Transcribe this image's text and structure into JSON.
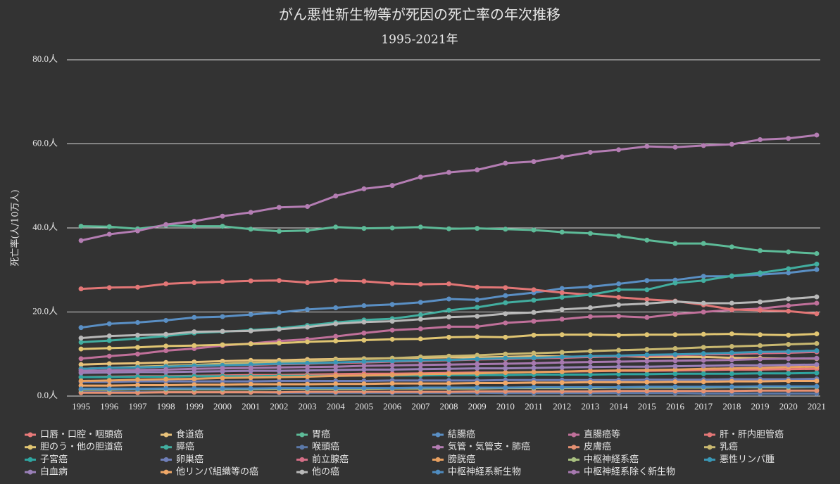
{
  "chart_data": {
    "type": "line",
    "title": "がん悪性新生物等が死因の死亡率の年次推移",
    "subtitle": "1995-2021年",
    "y_label": "死亡率(人/10万人)",
    "categories": [
      "1995",
      "1996",
      "1997",
      "1998",
      "1999",
      "2000",
      "2001",
      "2002",
      "2003",
      "2004",
      "2005",
      "2006",
      "2007",
      "2008",
      "2009",
      "2010",
      "2011",
      "2012",
      "2013",
      "2014",
      "2015",
      "2016",
      "2017",
      "2018",
      "2019",
      "2020",
      "2021"
    ],
    "ylim": [
      0,
      80
    ],
    "yticks": [
      {
        "value": 0,
        "label": "0.0人"
      },
      {
        "value": 20,
        "label": "20.0人"
      },
      {
        "value": 40,
        "label": "40.0人"
      },
      {
        "value": 60,
        "label": "60.0人"
      },
      {
        "value": 80,
        "label": "80.0人"
      }
    ],
    "grid": true,
    "series": [
      {
        "name": "口唇・口腔・咽頭癌",
        "color": "#e87a7a",
        "values": [
          4.5,
          4.6,
          4.7,
          4.7,
          4.8,
          4.9,
          5,
          5,
          5.1,
          5.2,
          5.3,
          5.3,
          5.4,
          5.5,
          5.6,
          5.6,
          5.7,
          5.8,
          5.9,
          6,
          6,
          6.1,
          6.2,
          6.3,
          6.3,
          6.4,
          6.5
        ]
      },
      {
        "name": "食道癌",
        "color": "#e8c27a",
        "values": [
          7.5,
          7.7,
          7.8,
          8,
          8.1,
          8.3,
          8.5,
          8.5,
          8.7,
          8.8,
          8.9,
          9,
          9.1,
          9.2,
          9.2,
          9.3,
          9.5,
          9.4,
          9.3,
          9.5,
          9.3,
          9.3,
          9.3,
          9.1,
          9,
          8.9,
          8.9
        ]
      },
      {
        "name": "胃癌",
        "color": "#5dbb98",
        "values": [
          40.4,
          40.3,
          39.8,
          40.6,
          40.4,
          40.4,
          39.7,
          39.2,
          39.4,
          40.2,
          39.9,
          40,
          40.2,
          39.8,
          39.9,
          39.7,
          39.5,
          39,
          38.7,
          38.1,
          37.1,
          36.3,
          36.3,
          35.5,
          34.6,
          34.3,
          33.9
        ]
      },
      {
        "name": "結腸癌",
        "color": "#5a8fc4",
        "values": [
          16.3,
          17.2,
          17.5,
          18,
          18.7,
          18.9,
          19.4,
          19.9,
          20.6,
          21,
          21.5,
          21.8,
          22.3,
          23.1,
          22.9,
          23.9,
          24.6,
          25.6,
          26,
          26.7,
          27.5,
          27.6,
          28.5,
          28.5,
          28.9,
          29.3,
          30.1
        ]
      },
      {
        "name": "直腸癌等",
        "color": "#c0709a",
        "values": [
          8.9,
          9.5,
          10,
          10.8,
          11.3,
          12,
          12.5,
          13.1,
          13.5,
          14.2,
          15,
          15.7,
          16,
          16.5,
          16.5,
          17.4,
          17.8,
          18.3,
          18.9,
          19,
          18.7,
          19.5,
          20,
          20.5,
          20.8,
          21.5,
          22.1
        ]
      },
      {
        "name": "肝・肝内胆管癌",
        "color": "#e27676",
        "values": [
          25.5,
          25.8,
          25.9,
          26.7,
          27,
          27.2,
          27.4,
          27.5,
          27,
          27.5,
          27.3,
          26.8,
          26.6,
          26.7,
          25.9,
          25.8,
          25.3,
          24.6,
          24.1,
          23.5,
          23,
          22.6,
          21.7,
          20.6,
          20.4,
          20.2,
          19.6
        ]
      },
      {
        "name": "胆のう・他の胆道癌",
        "color": "#e0c572",
        "values": [
          11.2,
          11.4,
          11.6,
          11.9,
          12,
          12.2,
          12.4,
          12.6,
          12.9,
          13.1,
          13.3,
          13.5,
          13.6,
          14,
          14.1,
          14,
          14.5,
          14.6,
          14.6,
          14.5,
          14.6,
          14.6,
          14.7,
          14.8,
          14.6,
          14.5,
          14.8
        ]
      },
      {
        "name": "膵癌",
        "color": "#42aea0",
        "values": [
          12.8,
          13.2,
          13.7,
          14.3,
          15,
          15.3,
          15.7,
          16.1,
          16.8,
          17.5,
          18.1,
          18.4,
          19.3,
          20.4,
          21.1,
          22.2,
          22.8,
          23.5,
          24.1,
          25.3,
          25.3,
          26.9,
          27.5,
          28.6,
          29.3,
          30.3,
          31.4
        ]
      },
      {
        "name": "喉頭癌",
        "color": "#5b78a8",
        "values": [
          0.9,
          0.9,
          0.9,
          0.9,
          0.9,
          0.9,
          0.9,
          0.8,
          0.8,
          0.8,
          0.8,
          0.8,
          0.8,
          0.8,
          0.8,
          0.7,
          0.7,
          0.7,
          0.7,
          0.7,
          0.7,
          0.7,
          0.6,
          0.6,
          0.6,
          0.6,
          0.6
        ]
      },
      {
        "name": "気管・気管支・肺癌",
        "color": "#b47db3",
        "values": [
          37,
          38.5,
          39.3,
          40.8,
          41.6,
          42.8,
          43.7,
          44.9,
          45.1,
          47.6,
          49.3,
          50.1,
          52.1,
          53.2,
          53.8,
          55.4,
          55.8,
          56.9,
          58,
          58.6,
          59.4,
          59.2,
          59.6,
          59.9,
          61,
          61.3,
          62.1
        ]
      },
      {
        "name": "皮膚癌",
        "color": "#e59072",
        "values": [
          0.8,
          0.8,
          0.8,
          0.9,
          0.9,
          0.9,
          0.9,
          0.9,
          1,
          1,
          1,
          1,
          1,
          1,
          1.1,
          1.1,
          1.1,
          1.1,
          1.1,
          1.2,
          1.2,
          1.2,
          1.2,
          1.2,
          1.3,
          1.3,
          1.3
        ]
      },
      {
        "name": "乳癌",
        "color": "#c9b870",
        "values": [
          6.5,
          6.7,
          7,
          7.2,
          7.4,
          7.7,
          7.9,
          8.1,
          8.3,
          8.6,
          8.8,
          9,
          9.3,
          9.5,
          9.7,
          10,
          10.2,
          10.4,
          10.7,
          10.9,
          11.1,
          11.3,
          11.6,
          11.8,
          12,
          12.3,
          12.5
        ]
      },
      {
        "name": "子宮癌",
        "color": "#2fa5a0",
        "values": [
          4.5,
          4.5,
          4.6,
          4.6,
          4.7,
          4.7,
          4.7,
          4.8,
          4.8,
          4.8,
          4.9,
          4.9,
          4.9,
          5,
          5,
          5,
          5.1,
          5.1,
          5.1,
          5.2,
          5.2,
          5.3,
          5.3,
          5.3,
          5.4,
          5.4,
          5.5
        ]
      },
      {
        "name": "卵巣癌",
        "color": "#6f7fb8",
        "values": [
          3.4,
          3.4,
          3.5,
          3.5,
          3.5,
          3.5,
          3.5,
          3.6,
          3.6,
          3.6,
          3.6,
          3.7,
          3.7,
          3.7,
          3.7,
          3.8,
          3.8,
          3.8,
          3.8,
          3.8,
          3.9,
          3.9,
          3.9,
          4,
          4,
          4,
          4.1
        ]
      },
      {
        "name": "前立腺癌",
        "color": "#d46e86",
        "values": [
          6.5,
          6.7,
          6.8,
          7,
          7.1,
          7.3,
          7.4,
          7.6,
          7.7,
          7.9,
          8,
          8.2,
          8.3,
          8.5,
          8.7,
          8.8,
          9,
          9.1,
          9.3,
          9.4,
          9.6,
          9.7,
          9.9,
          10,
          10.2,
          10.3,
          10.5
        ]
      },
      {
        "name": "膀胱癌",
        "color": "#e8a060",
        "values": [
          3.6,
          3.7,
          3.9,
          4,
          4.1,
          4.3,
          4.4,
          4.5,
          4.6,
          4.8,
          4.9,
          5,
          5.2,
          5.3,
          5.4,
          5.6,
          5.7,
          5.8,
          6,
          6.1,
          6.2,
          6.3,
          6.5,
          6.6,
          6.7,
          6.9,
          7
        ]
      },
      {
        "name": "中枢神経系癌",
        "color": "#a9c080",
        "values": [
          1.5,
          1.5,
          1.6,
          1.6,
          1.6,
          1.6,
          1.6,
          1.7,
          1.7,
          1.7,
          1.7,
          1.8,
          1.8,
          1.8,
          1.8,
          1.9,
          1.9,
          1.9,
          1.9,
          2,
          2,
          2,
          2,
          2.1,
          2.1,
          2.1,
          2.2
        ]
      },
      {
        "name": "悪性リンパ腫",
        "color": "#3a97b5",
        "values": [
          6.5,
          6.7,
          6.8,
          7,
          7.2,
          7.3,
          7.5,
          7.7,
          7.8,
          8,
          8.2,
          8.3,
          8.5,
          8.6,
          8.8,
          9,
          9.1,
          9.3,
          9.5,
          9.6,
          9.8,
          9.9,
          10.1,
          10.3,
          10.5,
          10.6,
          10.8
        ]
      },
      {
        "name": "白血病",
        "color": "#9a80b8",
        "values": [
          5.5,
          5.6,
          5.7,
          5.7,
          5.8,
          5.9,
          6,
          6,
          6.1,
          6.2,
          6.3,
          6.3,
          6.4,
          6.5,
          6.6,
          6.6,
          6.7,
          6.8,
          6.9,
          7,
          7,
          7.1,
          7.2,
          7.3,
          7.3,
          7.4,
          7.5
        ]
      },
      {
        "name": "他リンパ組織等の癌",
        "color": "#f0a868",
        "values": [
          2.5,
          2.5,
          2.6,
          2.6,
          2.7,
          2.7,
          2.8,
          2.8,
          2.8,
          2.9,
          2.9,
          3,
          3,
          3,
          3.1,
          3.1,
          3.2,
          3.2,
          3.3,
          3.3,
          3.3,
          3.4,
          3.4,
          3.5,
          3.5,
          3.6,
          3.6
        ]
      },
      {
        "name": "他の癌",
        "color": "#b8b8b8",
        "values": [
          13.8,
          14.3,
          14.5,
          14.7,
          15.3,
          15.4,
          15.5,
          15.9,
          16.4,
          17.2,
          17.6,
          17.8,
          18.3,
          18.8,
          19,
          19.6,
          19.9,
          20.6,
          21,
          21.7,
          22,
          22.5,
          22.1,
          22.1,
          22.4,
          23.1,
          23.6
        ]
      },
      {
        "name": "中枢神経系新生物",
        "color": "#4f8cc0",
        "values": [
          1.7,
          1.7,
          1.7,
          1.8,
          1.8,
          1.8,
          1.8,
          1.9,
          1.9,
          1.9,
          1.9,
          1.9,
          2,
          2,
          2,
          2,
          2.1,
          2.1,
          2.1,
          2.1,
          2.2,
          2.2,
          2.2,
          2.2,
          2.3,
          2.3,
          2.3
        ]
      },
      {
        "name": "中枢神経系除く新生物",
        "color": "#a779b0",
        "values": [
          6,
          6.1,
          6.2,
          6.3,
          6.5,
          6.6,
          6.7,
          6.8,
          6.9,
          7,
          7.2,
          7.3,
          7.4,
          7.5,
          7.6,
          7.7,
          7.8,
          8,
          8.1,
          8.2,
          8.3,
          8.4,
          8.5,
          8.6,
          8.8,
          8.9,
          9
        ]
      }
    ]
  }
}
